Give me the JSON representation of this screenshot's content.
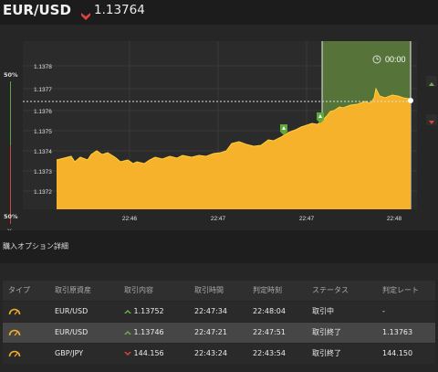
{
  "header": {
    "pair": "EUR/USD",
    "price": "1.13764",
    "trend": "down",
    "colors": {
      "down": "#e0413c",
      "up": "#6ab04c",
      "accent": "#f5b22a",
      "zone": "#5a7a3c"
    }
  },
  "chart_data": {
    "type": "area",
    "y_ticks": [
      "1.1378",
      "1.1377",
      "1.1376",
      "1.1375",
      "1.1374",
      "1.1373",
      "1.1372"
    ],
    "x_ticks": [
      "22:46",
      "22:47",
      "22:47",
      "22:48"
    ],
    "left_pct_top": "50%",
    "left_pct_bottom": "50%",
    "close_label": "×",
    "timer_label": "00:00",
    "timer_icon": "clock-icon",
    "markers": [
      "up-marker",
      "up-marker"
    ]
  },
  "options_section": {
    "title": "購入オプション詳細"
  },
  "table": {
    "headers": [
      "タイプ",
      "取引原資産",
      "取引内容",
      "取引時間",
      "判定時刻",
      "ステータス",
      "判定レート"
    ],
    "rows": [
      {
        "type_icon": "gauge-icon",
        "asset": "EUR/USD",
        "direction": "up",
        "entry": "1.13752",
        "time": "22:47:34",
        "expiry": "22:48:04",
        "status": "取引中",
        "result": "-"
      },
      {
        "type_icon": "gauge-icon",
        "asset": "EUR/USD",
        "direction": "up",
        "entry": "1.13746",
        "time": "22:47:21",
        "expiry": "22:47:51",
        "status": "取引終了",
        "result": "1.13763"
      },
      {
        "type_icon": "gauge-icon",
        "asset": "GBP/JPY",
        "direction": "down",
        "entry": "144.156",
        "time": "22:43:24",
        "expiry": "22:43:54",
        "status": "取引終了",
        "result": "144.150"
      }
    ]
  }
}
